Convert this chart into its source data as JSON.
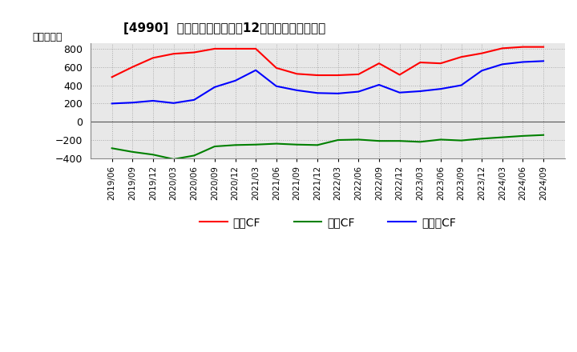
{
  "title": "[4990]  キャッシュフローの12か月移動合計の推移",
  "ylabel": "（百万円）",
  "background_color": "#ffffff",
  "grid_color": "#aaaaaa",
  "plot_bg_color": "#e8e8e8",
  "dates": [
    "2019/06",
    "2019/09",
    "2019/12",
    "2020/03",
    "2020/06",
    "2020/09",
    "2020/12",
    "2021/03",
    "2021/06",
    "2021/09",
    "2021/12",
    "2022/03",
    "2022/06",
    "2022/09",
    "2022/12",
    "2023/03",
    "2023/06",
    "2023/09",
    "2023/12",
    "2024/03",
    "2024/06",
    "2024/09"
  ],
  "operating_cf": [
    490,
    600,
    700,
    745,
    760,
    800,
    800,
    800,
    590,
    525,
    510,
    510,
    520,
    640,
    515,
    650,
    640,
    710,
    750,
    805,
    820,
    820
  ],
  "investing_cf": [
    -290,
    -330,
    -360,
    -410,
    -370,
    -270,
    -255,
    -250,
    -240,
    -250,
    -255,
    -200,
    -195,
    -210,
    -210,
    -220,
    -195,
    -205,
    -185,
    -170,
    -155,
    -145
  ],
  "free_cf": [
    200,
    210,
    230,
    205,
    240,
    380,
    450,
    565,
    390,
    345,
    315,
    310,
    330,
    405,
    320,
    335,
    360,
    400,
    560,
    630,
    655,
    665
  ],
  "operating_color": "#ff0000",
  "investing_color": "#008000",
  "free_color": "#0000ff",
  "ylim": [
    -400,
    860
  ],
  "yticks": [
    -400,
    -200,
    0,
    200,
    400,
    600,
    800
  ],
  "legend_labels": [
    "営業CF",
    "投資CF",
    "フリーCF"
  ]
}
